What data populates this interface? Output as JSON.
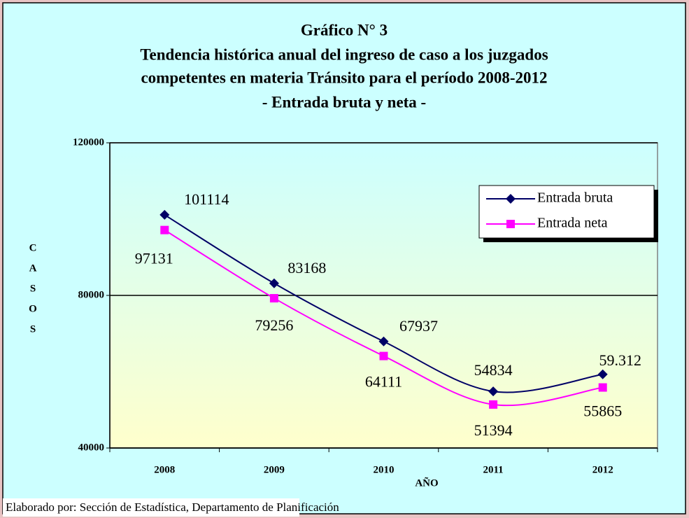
{
  "chart_data": {
    "type": "line",
    "title": [
      "Gráfico N° 3",
      "Tendencia histórica anual del ingreso de caso a los juzgados",
      "competentes en materia Tránsito para el período 2008-2012",
      "- Entrada bruta y neta -"
    ],
    "y_label": [
      "C",
      "A",
      "S",
      "O",
      "S"
    ],
    "x_label": "AÑO",
    "categories": [
      "2008",
      "2009",
      "2010",
      "2011",
      "2012"
    ],
    "series": [
      {
        "name": "Entrada bruta",
        "color": "#000066",
        "values": [
          101114,
          83168,
          67937,
          54834,
          59312
        ],
        "value_labels": [
          "101114",
          "83168",
          "67937",
          "54834",
          "59.312"
        ]
      },
      {
        "name": "Entrada neta",
        "color": "#ff00ff",
        "values": [
          97131,
          79256,
          64111,
          51394,
          55865
        ]
      }
    ],
    "ylim": [
      40000,
      120000
    ],
    "yticks": [
      40000,
      80000,
      120000
    ],
    "grid": true,
    "legend": "upper right",
    "footer": "Elaborado por: Sección de Estadística, Departamento de Planificación"
  }
}
